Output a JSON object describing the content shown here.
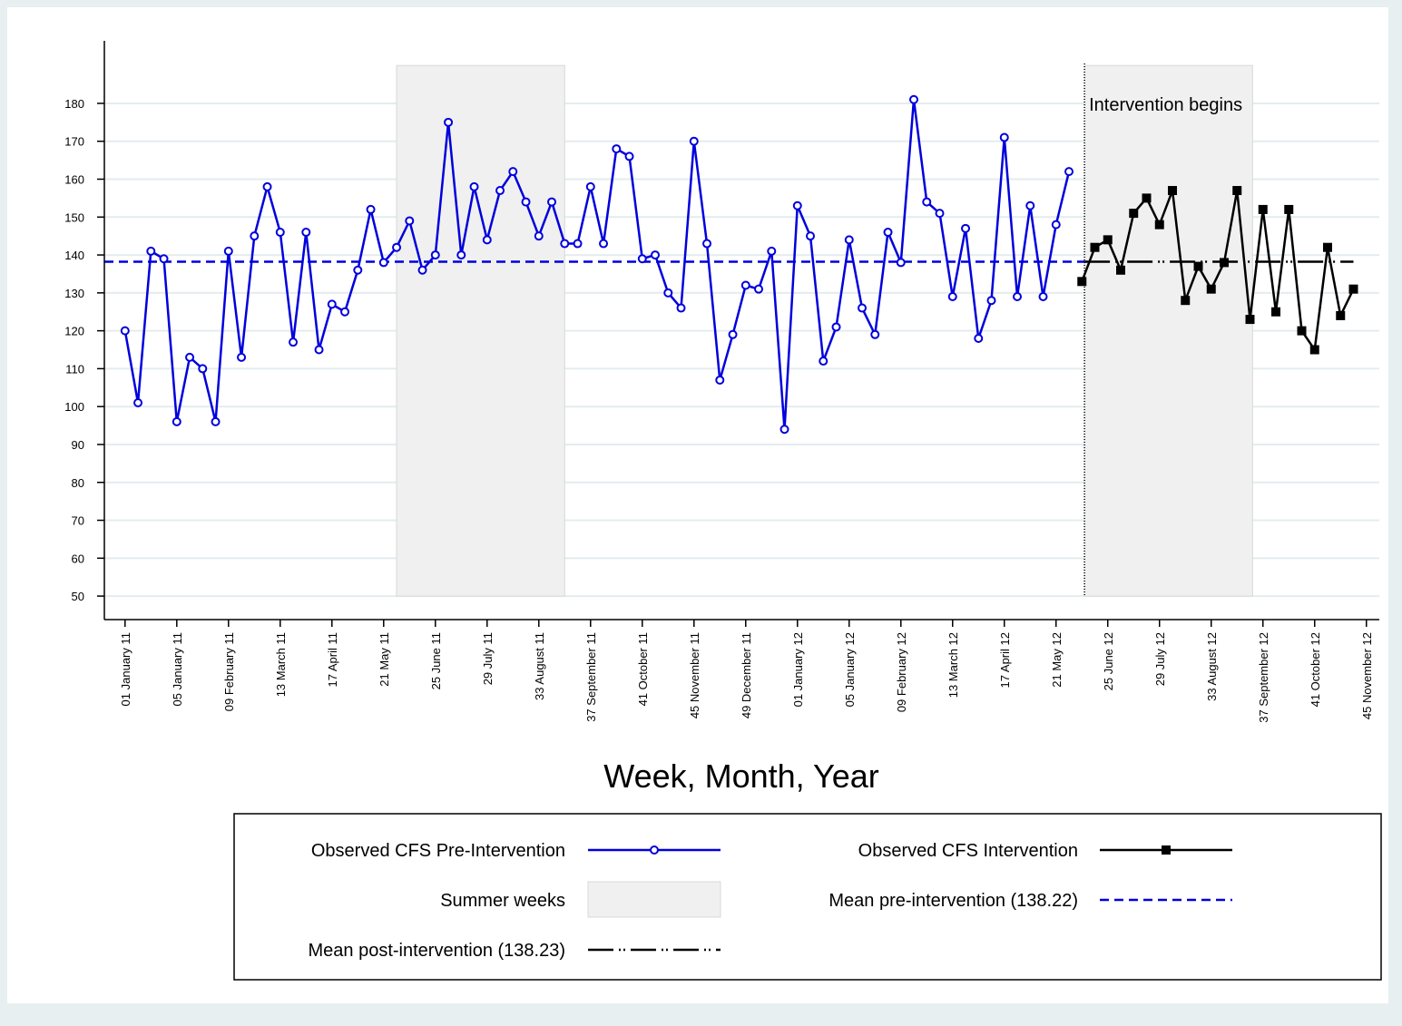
{
  "chart_data": {
    "type": "line",
    "x_label": "Week, Month, Year",
    "xlim": [
      -0.6,
      98
    ],
    "ylim": [
      43.8,
      196.5
    ],
    "yticks": [
      50,
      60,
      70,
      80,
      90,
      100,
      110,
      120,
      130,
      140,
      150,
      160,
      170,
      180
    ],
    "xticks": [
      {
        "value": 1,
        "label": "01 January 11"
      },
      {
        "value": 5,
        "label": "05 January 11"
      },
      {
        "value": 9,
        "label": "09 February 11"
      },
      {
        "value": 13,
        "label": "13 March 11"
      },
      {
        "value": 17,
        "label": "17 April 11"
      },
      {
        "value": 21,
        "label": "21 May 11"
      },
      {
        "value": 25,
        "label": "25 June 11"
      },
      {
        "value": 29,
        "label": "29 July 11"
      },
      {
        "value": 33,
        "label": "33 August 11"
      },
      {
        "value": 37,
        "label": "37 September 11"
      },
      {
        "value": 41,
        "label": "41 October 11"
      },
      {
        "value": 45,
        "label": "45 November 11"
      },
      {
        "value": 49,
        "label": "49 December 11"
      },
      {
        "value": 53,
        "label": "01 January 12"
      },
      {
        "value": 57,
        "label": "05 January 12"
      },
      {
        "value": 61,
        "label": "09 February 12"
      },
      {
        "value": 65,
        "label": "13 March 12"
      },
      {
        "value": 69,
        "label": "17 April 12"
      },
      {
        "value": 73,
        "label": "21 May 12"
      },
      {
        "value": 77,
        "label": "25 June 12"
      },
      {
        "value": 81,
        "label": "29 July 12"
      },
      {
        "value": 85,
        "label": "33 August 12"
      },
      {
        "value": 89,
        "label": "37 September 12"
      },
      {
        "value": 93,
        "label": "41 October 12"
      },
      {
        "value": 97,
        "label": "45 November 12"
      }
    ],
    "grid": true,
    "series": [
      {
        "name": "Observed CFS Pre-Intervention",
        "color": "#0000dd",
        "marker": "circle",
        "x": [
          1,
          2,
          3,
          4,
          5,
          6,
          7,
          8,
          9,
          10,
          11,
          12,
          13,
          14,
          15,
          16,
          17,
          18,
          19,
          20,
          21,
          22,
          23,
          24,
          25,
          26,
          27,
          28,
          29,
          30,
          31,
          32,
          33,
          34,
          35,
          36,
          37,
          38,
          39,
          40,
          41,
          42,
          43,
          44,
          45,
          46,
          47,
          48,
          49,
          50,
          51,
          52,
          53,
          54,
          55,
          56,
          57,
          58,
          59,
          60,
          61,
          62,
          63,
          64,
          65,
          66,
          67,
          68,
          69,
          70,
          71,
          72,
          73,
          74
        ],
        "values": [
          120,
          101,
          141,
          139,
          96,
          113,
          110,
          96,
          141,
          113,
          145,
          158,
          146,
          117,
          146,
          115,
          127,
          125,
          136,
          152,
          138,
          142,
          149,
          136,
          140,
          175,
          140,
          158,
          144,
          157,
          162,
          154,
          145,
          154,
          143,
          143,
          158,
          143,
          168,
          166,
          139,
          140,
          130,
          126,
          170,
          143,
          107,
          119,
          132,
          131,
          141,
          94,
          153,
          145,
          112,
          121,
          144,
          126,
          119,
          146,
          138,
          181,
          154,
          151,
          129,
          147,
          118,
          128,
          171,
          129,
          153,
          129,
          148,
          162
        ]
      },
      {
        "name": "Observed CFS Intervention",
        "color": "#000000",
        "marker": "square",
        "x": [
          75,
          76,
          77,
          78,
          79,
          80,
          81,
          82,
          83,
          84,
          85,
          86,
          87,
          88,
          89,
          90,
          91,
          92,
          93,
          94,
          95,
          96
        ],
        "values": [
          133,
          142,
          144,
          136,
          151,
          155,
          148,
          157,
          128,
          137,
          131,
          138,
          157,
          123,
          152,
          125,
          152,
          120,
          115,
          142,
          124,
          131
        ]
      }
    ],
    "shaded": {
      "name": "Summer weeks",
      "color": "#f0f0f0",
      "ranges": [
        [
          22,
          35
        ],
        [
          75.2,
          88.2
        ]
      ],
      "y_range": [
        50,
        190
      ]
    },
    "mean_lines": [
      {
        "name": "Mean pre-intervention (138.22)",
        "value": 138.22,
        "color": "#0000dd",
        "style": "dash"
      },
      {
        "name": "Mean post-intervention (138.23)",
        "value": 138.23,
        "color": "#000000",
        "style": "dashdot"
      }
    ],
    "annotation": {
      "text": "Intervention begins",
      "x": 75.2
    }
  }
}
